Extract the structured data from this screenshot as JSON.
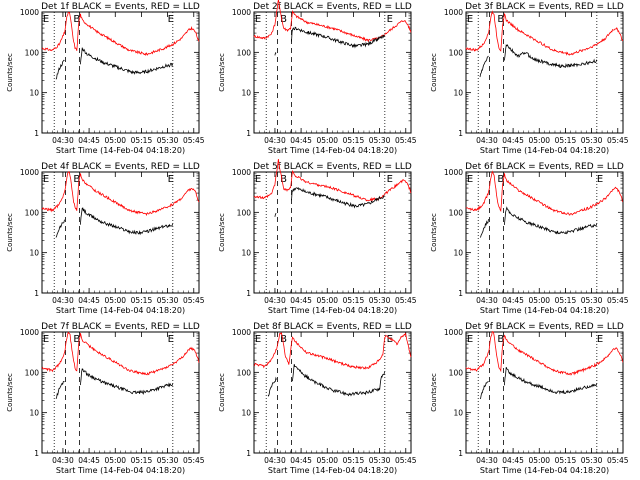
{
  "figure": {
    "background": "#ffffff",
    "events_color": "#000000",
    "lld_color": "#ff0000"
  },
  "chart_data": [
    {
      "type": "line",
      "title": "Det 1f BLACK = Events, RED = LLD",
      "xlabel": "Start Time (14-Feb-04 04:18:20)",
      "ylabel": "Counts/sec",
      "ylog": true,
      "ylim": [
        1,
        1000
      ],
      "xlim_min": [
        0,
        90
      ],
      "tick_labels": [
        "04:30",
        "04:45",
        "05:00",
        "05:15",
        "05:30",
        "05:45"
      ],
      "tick_minutes": [
        12,
        27,
        42,
        57,
        72,
        87
      ],
      "markers": [
        {
          "label": "E",
          "x": 0.5
        },
        {
          "label": "B",
          "x": 18
        },
        {
          "label": "E",
          "x": 72
        }
      ],
      "dotted_x": [
        7,
        75
      ],
      "dashed_x": [
        13.5,
        21.5
      ],
      "lld_profile": "a",
      "events_profile": "a"
    },
    {
      "type": "line",
      "title": "Det 2f BLACK = Events, RED = LLD",
      "xlabel": "Start Time (14-Feb-04 04:18:20)",
      "ylabel": "Counts/sec",
      "ylog": true,
      "ylim": [
        1,
        1000
      ],
      "xlim_min": [
        0,
        90
      ],
      "tick_labels": [
        "04:30",
        "04:45",
        "05:00",
        "05:15",
        "05:30",
        "05:45"
      ],
      "tick_minutes": [
        12,
        27,
        42,
        57,
        72,
        87
      ],
      "markers": [
        {
          "label": "E",
          "x": 0.5
        },
        {
          "label": "B",
          "x": 15
        },
        {
          "label": "E",
          "x": 76
        }
      ],
      "dotted_x": [
        7,
        75
      ],
      "dashed_x": [
        13.5,
        21.5
      ],
      "lld_profile": "b",
      "events_profile": "b"
    },
    {
      "type": "line",
      "title": "Det 3f BLACK = Events, RED = LLD",
      "xlabel": "Start Time (14-Feb-04 04:18:20)",
      "ylabel": "Counts/sec",
      "ylog": true,
      "ylim": [
        1,
        1000
      ],
      "xlim_min": [
        0,
        90
      ],
      "tick_labels": [
        "04:30",
        "04:45",
        "05:00",
        "05:15",
        "05:30",
        "05:45"
      ],
      "tick_minutes": [
        12,
        27,
        42,
        57,
        72,
        87
      ],
      "markers": [
        {
          "label": "E",
          "x": 0.5
        },
        {
          "label": "B",
          "x": 18
        }
      ],
      "dotted_x": [
        7,
        75
      ],
      "dashed_x": [
        13.5,
        21.5
      ],
      "lld_profile": "a",
      "events_profile": "c"
    },
    {
      "type": "line",
      "title": "Det 4f BLACK = Events, RED = LLD",
      "xlabel": "Start Time (14-Feb-04 04:18:20)",
      "ylabel": "Counts/sec",
      "ylog": true,
      "ylim": [
        1,
        1000
      ],
      "xlim_min": [
        0,
        90
      ],
      "tick_labels": [
        "04:30",
        "04:45",
        "05:00",
        "05:15",
        "05:30",
        "05:45"
      ],
      "tick_minutes": [
        12,
        27,
        42,
        57,
        72,
        87
      ],
      "markers": [
        {
          "label": "E",
          "x": 0.5
        },
        {
          "label": "B",
          "x": 18
        },
        {
          "label": "E",
          "x": 72
        }
      ],
      "dotted_x": [
        7,
        75
      ],
      "dashed_x": [
        13.5,
        21.5
      ],
      "lld_profile": "a",
      "events_profile": "a"
    },
    {
      "type": "line",
      "title": "Det 5f BLACK = Events, RED = LLD",
      "xlabel": "Start Time (14-Feb-04 04:18:20)",
      "ylabel": "Counts/sec",
      "ylog": true,
      "ylim": [
        1,
        1000
      ],
      "xlim_min": [
        0,
        90
      ],
      "tick_labels": [
        "04:30",
        "04:45",
        "05:00",
        "05:15",
        "05:30",
        "05:45"
      ],
      "tick_minutes": [
        12,
        27,
        42,
        57,
        72,
        87
      ],
      "markers": [
        {
          "label": "E",
          "x": 0.5
        },
        {
          "label": "B",
          "x": 15
        },
        {
          "label": "E",
          "x": 76
        }
      ],
      "dotted_x": [
        7,
        75
      ],
      "dashed_x": [
        13.5,
        21.5
      ],
      "lld_profile": "b",
      "events_profile": "b"
    },
    {
      "type": "line",
      "title": "Det 6f BLACK = Events, RED = LLD",
      "xlabel": "Start Time (14-Feb-04 04:18:20)",
      "ylabel": "Counts/sec",
      "ylog": true,
      "ylim": [
        1,
        1000
      ],
      "xlim_min": [
        0,
        90
      ],
      "tick_labels": [
        "04:30",
        "04:45",
        "05:00",
        "05:15",
        "05:30",
        "05:45"
      ],
      "tick_minutes": [
        12,
        27,
        42,
        57,
        72,
        87
      ],
      "markers": [
        {
          "label": "E",
          "x": 0.5
        },
        {
          "label": "B",
          "x": 18
        },
        {
          "label": "E",
          "x": 75
        }
      ],
      "dotted_x": [
        7,
        75
      ],
      "dashed_x": [
        13.5,
        21.5
      ],
      "lld_profile": "a",
      "events_profile": "a"
    },
    {
      "type": "line",
      "title": "Det 7f BLACK = Events, RED = LLD",
      "xlabel": "Start Time (14-Feb-04 04:18:20)",
      "ylabel": "Counts/sec",
      "ylog": true,
      "ylim": [
        1,
        1000
      ],
      "xlim_min": [
        0,
        90
      ],
      "tick_labels": [
        "04:30",
        "04:45",
        "05:00",
        "05:15",
        "05:30",
        "05:45"
      ],
      "tick_minutes": [
        12,
        27,
        42,
        57,
        72,
        87
      ],
      "markers": [
        {
          "label": "E",
          "x": 0.5
        },
        {
          "label": "B",
          "x": 18
        },
        {
          "label": "E",
          "x": 72
        }
      ],
      "dotted_x": [
        7,
        75
      ],
      "dashed_x": [
        13.5,
        21.5
      ],
      "lld_profile": "a",
      "events_profile": "a"
    },
    {
      "type": "line",
      "title": "Det 8f BLACK = Events, RED = LLD",
      "xlabel": "Start Time (14-Feb-04 04:18:20)",
      "ylabel": "Counts/sec",
      "ylog": true,
      "ylim": [
        1,
        1000
      ],
      "xlim_min": [
        0,
        90
      ],
      "tick_labels": [
        "04:30",
        "04:45",
        "05:00",
        "05:15",
        "05:30",
        "05:45"
      ],
      "tick_minutes": [
        12,
        27,
        42,
        57,
        72,
        87
      ],
      "markers": [
        {
          "label": "E",
          "x": 0.5
        },
        {
          "label": "B",
          "x": 15
        },
        {
          "label": "E",
          "x": 76
        }
      ],
      "dotted_x": [
        7,
        75
      ],
      "dashed_x": [
        13.5,
        21.5
      ],
      "lld_profile": "d",
      "events_profile": "d"
    },
    {
      "type": "line",
      "title": "Det 9f BLACK = Events, RED = LLD",
      "xlabel": "Start Time (14-Feb-04 04:18:20)",
      "ylabel": "Counts/sec",
      "ylog": true,
      "ylim": [
        1,
        1000
      ],
      "xlim_min": [
        0,
        90
      ],
      "tick_labels": [
        "04:30",
        "04:45",
        "05:00",
        "05:15",
        "05:30",
        "05:45"
      ],
      "tick_minutes": [
        12,
        27,
        42,
        57,
        72,
        87
      ],
      "markers": [
        {
          "label": "E",
          "x": 0.5
        },
        {
          "label": "B",
          "x": 18
        },
        {
          "label": "E",
          "x": 75
        }
      ],
      "dotted_x": [
        7,
        75
      ],
      "dashed_x": [
        13.5,
        21.5
      ],
      "lld_profile": "a",
      "events_profile": "a"
    }
  ]
}
